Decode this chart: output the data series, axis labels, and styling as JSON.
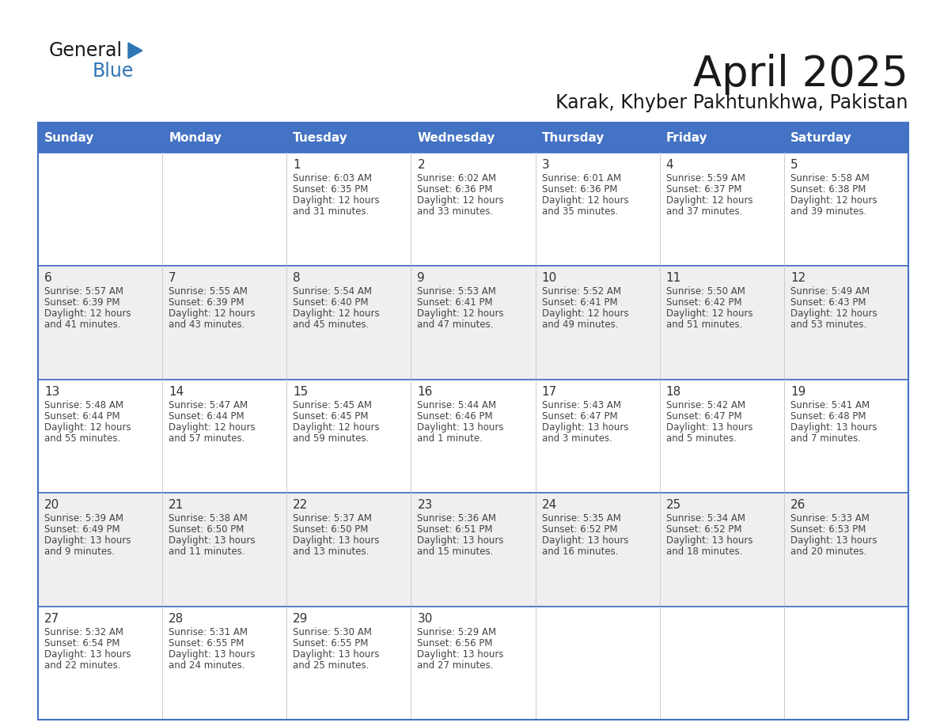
{
  "title": "April 2025",
  "subtitle": "Karak, Khyber Pakhtunkhwa, Pakistan",
  "header_bg_color": "#4472C4",
  "header_text_color": "#FFFFFF",
  "days_of_week": [
    "Sunday",
    "Monday",
    "Tuesday",
    "Wednesday",
    "Thursday",
    "Friday",
    "Saturday"
  ],
  "row_bg_colors": [
    "#FFFFFF",
    "#EFEFEF",
    "#FFFFFF",
    "#EFEFEF",
    "#FFFFFF"
  ],
  "cell_border_color": "#4472C4",
  "day_number_color": "#333333",
  "info_text_color": "#444444",
  "calendar_data": [
    [
      {
        "day": null,
        "sunrise": null,
        "sunset": null,
        "daylight": null
      },
      {
        "day": null,
        "sunrise": null,
        "sunset": null,
        "daylight": null
      },
      {
        "day": 1,
        "sunrise": "6:03 AM",
        "sunset": "6:35 PM",
        "daylight": "12 hours\nand 31 minutes."
      },
      {
        "day": 2,
        "sunrise": "6:02 AM",
        "sunset": "6:36 PM",
        "daylight": "12 hours\nand 33 minutes."
      },
      {
        "day": 3,
        "sunrise": "6:01 AM",
        "sunset": "6:36 PM",
        "daylight": "12 hours\nand 35 minutes."
      },
      {
        "day": 4,
        "sunrise": "5:59 AM",
        "sunset": "6:37 PM",
        "daylight": "12 hours\nand 37 minutes."
      },
      {
        "day": 5,
        "sunrise": "5:58 AM",
        "sunset": "6:38 PM",
        "daylight": "12 hours\nand 39 minutes."
      }
    ],
    [
      {
        "day": 6,
        "sunrise": "5:57 AM",
        "sunset": "6:39 PM",
        "daylight": "12 hours\nand 41 minutes."
      },
      {
        "day": 7,
        "sunrise": "5:55 AM",
        "sunset": "6:39 PM",
        "daylight": "12 hours\nand 43 minutes."
      },
      {
        "day": 8,
        "sunrise": "5:54 AM",
        "sunset": "6:40 PM",
        "daylight": "12 hours\nand 45 minutes."
      },
      {
        "day": 9,
        "sunrise": "5:53 AM",
        "sunset": "6:41 PM",
        "daylight": "12 hours\nand 47 minutes."
      },
      {
        "day": 10,
        "sunrise": "5:52 AM",
        "sunset": "6:41 PM",
        "daylight": "12 hours\nand 49 minutes."
      },
      {
        "day": 11,
        "sunrise": "5:50 AM",
        "sunset": "6:42 PM",
        "daylight": "12 hours\nand 51 minutes."
      },
      {
        "day": 12,
        "sunrise": "5:49 AM",
        "sunset": "6:43 PM",
        "daylight": "12 hours\nand 53 minutes."
      }
    ],
    [
      {
        "day": 13,
        "sunrise": "5:48 AM",
        "sunset": "6:44 PM",
        "daylight": "12 hours\nand 55 minutes."
      },
      {
        "day": 14,
        "sunrise": "5:47 AM",
        "sunset": "6:44 PM",
        "daylight": "12 hours\nand 57 minutes."
      },
      {
        "day": 15,
        "sunrise": "5:45 AM",
        "sunset": "6:45 PM",
        "daylight": "12 hours\nand 59 minutes."
      },
      {
        "day": 16,
        "sunrise": "5:44 AM",
        "sunset": "6:46 PM",
        "daylight": "13 hours\nand 1 minute."
      },
      {
        "day": 17,
        "sunrise": "5:43 AM",
        "sunset": "6:47 PM",
        "daylight": "13 hours\nand 3 minutes."
      },
      {
        "day": 18,
        "sunrise": "5:42 AM",
        "sunset": "6:47 PM",
        "daylight": "13 hours\nand 5 minutes."
      },
      {
        "day": 19,
        "sunrise": "5:41 AM",
        "sunset": "6:48 PM",
        "daylight": "13 hours\nand 7 minutes."
      }
    ],
    [
      {
        "day": 20,
        "sunrise": "5:39 AM",
        "sunset": "6:49 PM",
        "daylight": "13 hours\nand 9 minutes."
      },
      {
        "day": 21,
        "sunrise": "5:38 AM",
        "sunset": "6:50 PM",
        "daylight": "13 hours\nand 11 minutes."
      },
      {
        "day": 22,
        "sunrise": "5:37 AM",
        "sunset": "6:50 PM",
        "daylight": "13 hours\nand 13 minutes."
      },
      {
        "day": 23,
        "sunrise": "5:36 AM",
        "sunset": "6:51 PM",
        "daylight": "13 hours\nand 15 minutes."
      },
      {
        "day": 24,
        "sunrise": "5:35 AM",
        "sunset": "6:52 PM",
        "daylight": "13 hours\nand 16 minutes."
      },
      {
        "day": 25,
        "sunrise": "5:34 AM",
        "sunset": "6:52 PM",
        "daylight": "13 hours\nand 18 minutes."
      },
      {
        "day": 26,
        "sunrise": "5:33 AM",
        "sunset": "6:53 PM",
        "daylight": "13 hours\nand 20 minutes."
      }
    ],
    [
      {
        "day": 27,
        "sunrise": "5:32 AM",
        "sunset": "6:54 PM",
        "daylight": "13 hours\nand 22 minutes."
      },
      {
        "day": 28,
        "sunrise": "5:31 AM",
        "sunset": "6:55 PM",
        "daylight": "13 hours\nand 24 minutes."
      },
      {
        "day": 29,
        "sunrise": "5:30 AM",
        "sunset": "6:55 PM",
        "daylight": "13 hours\nand 25 minutes."
      },
      {
        "day": 30,
        "sunrise": "5:29 AM",
        "sunset": "6:56 PM",
        "daylight": "13 hours\nand 27 minutes."
      },
      {
        "day": null,
        "sunrise": null,
        "sunset": null,
        "daylight": null
      },
      {
        "day": null,
        "sunrise": null,
        "sunset": null,
        "daylight": null
      },
      {
        "day": null,
        "sunrise": null,
        "sunset": null,
        "daylight": null
      }
    ]
  ],
  "logo_text1": "General",
  "logo_text2": "Blue",
  "logo_text1_color": "#1a1a1a",
  "logo_text2_color": "#2E75B6",
  "logo_triangle_color": "#2E75B6",
  "title_color": "#1a1a1a",
  "subtitle_color": "#1a1a1a"
}
